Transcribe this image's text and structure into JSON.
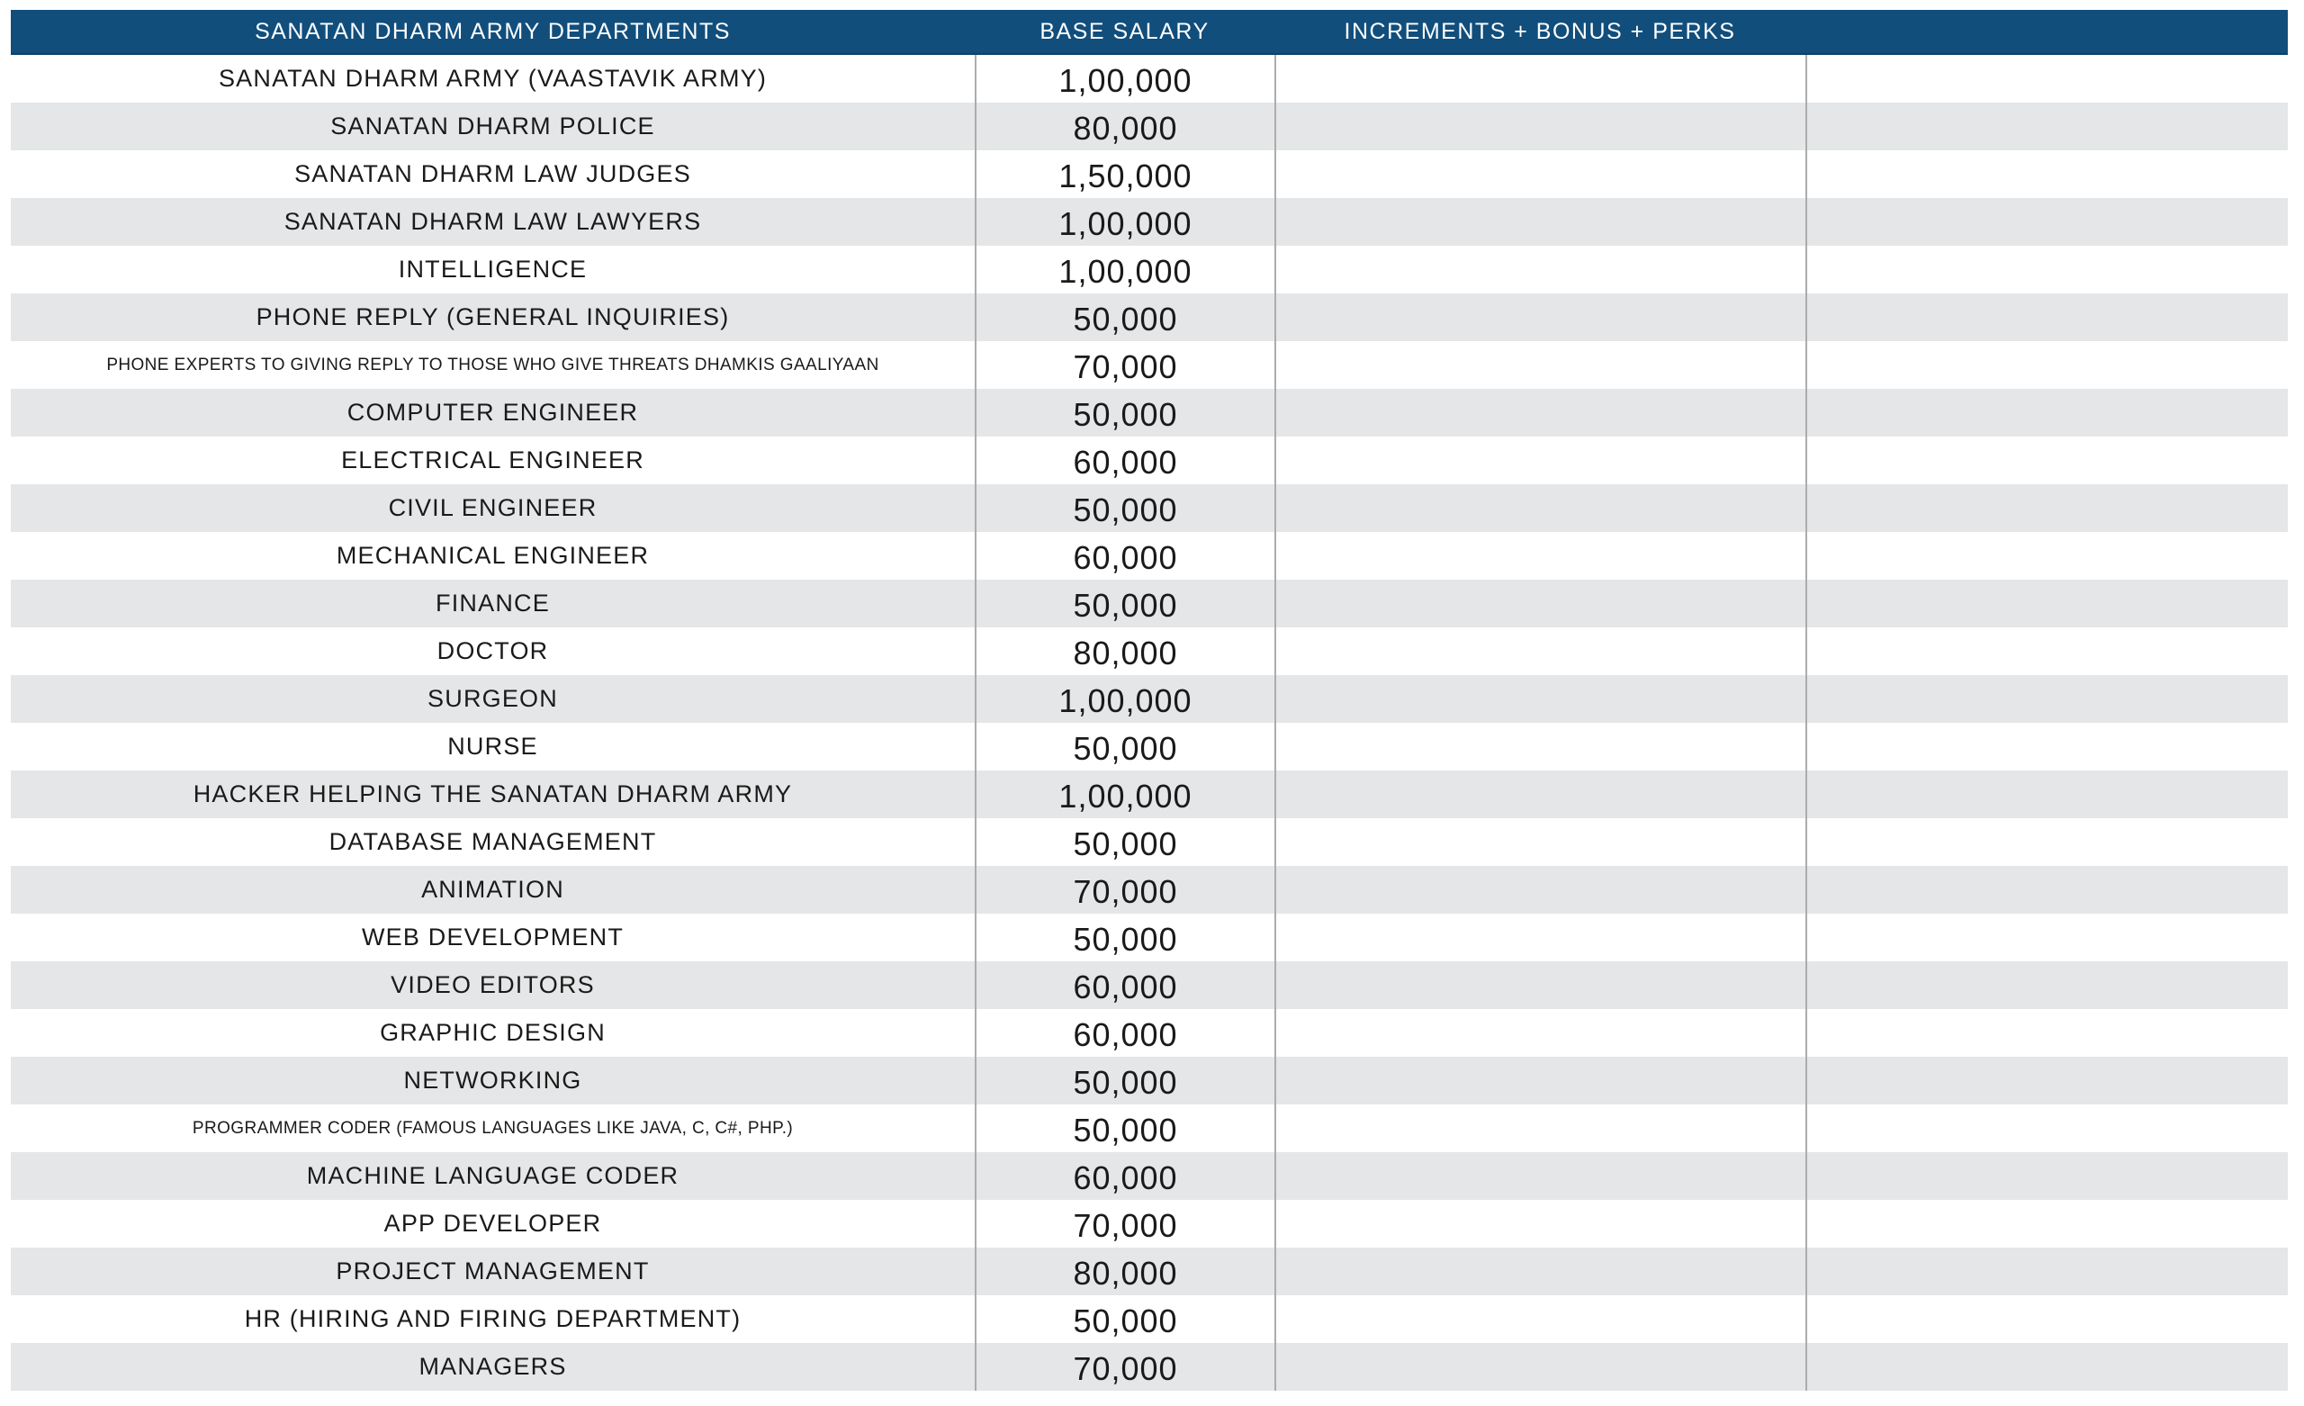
{
  "chart_data": {
    "type": "table",
    "title": "SANATAN DHARM ARMY DEPARTMENTS",
    "columns": [
      "SANATAN DHARM ARMY DEPARTMENTS",
      "BASE SALARY",
      "INCREMENTS + BONUS + PERKS",
      ""
    ],
    "layout": {
      "header_position": "top",
      "alternating_row_shading": true,
      "first_row_shade": "white",
      "grid": "vertical-lines-only"
    },
    "rows": [
      {
        "department": "SANATAN DHARM ARMY (VAASTAVIK ARMY)",
        "base_salary": "1,00,000",
        "increments_bonus_perks": "",
        "small_text": false
      },
      {
        "department": "SANATAN DHARM POLICE",
        "base_salary": "80,000",
        "increments_bonus_perks": "",
        "small_text": false
      },
      {
        "department": "SANATAN DHARM LAW JUDGES",
        "base_salary": "1,50,000",
        "increments_bonus_perks": "",
        "small_text": false
      },
      {
        "department": "SANATAN DHARM LAW LAWYERS",
        "base_salary": "1,00,000",
        "increments_bonus_perks": "",
        "small_text": false
      },
      {
        "department": "INTELLIGENCE",
        "base_salary": "1,00,000",
        "increments_bonus_perks": "",
        "small_text": false
      },
      {
        "department": "PHONE REPLY (GENERAL INQUIRIES)",
        "base_salary": "50,000",
        "increments_bonus_perks": "",
        "small_text": false
      },
      {
        "department": "PHONE EXPERTS TO GIVING REPLY TO THOSE WHO GIVE THREATS DHAMKIS GAALIYAAN",
        "base_salary": "70,000",
        "increments_bonus_perks": "",
        "small_text": true
      },
      {
        "department": "COMPUTER ENGINEER",
        "base_salary": "50,000",
        "increments_bonus_perks": "",
        "small_text": false
      },
      {
        "department": "ELECTRICAL ENGINEER",
        "base_salary": "60,000",
        "increments_bonus_perks": "",
        "small_text": false
      },
      {
        "department": "CIVIL ENGINEER",
        "base_salary": "50,000",
        "increments_bonus_perks": "",
        "small_text": false
      },
      {
        "department": "MECHANICAL ENGINEER",
        "base_salary": "60,000",
        "increments_bonus_perks": "",
        "small_text": false
      },
      {
        "department": "FINANCE",
        "base_salary": "50,000",
        "increments_bonus_perks": "",
        "small_text": false
      },
      {
        "department": "DOCTOR",
        "base_salary": "80,000",
        "increments_bonus_perks": "",
        "small_text": false
      },
      {
        "department": "SURGEON",
        "base_salary": "1,00,000",
        "increments_bonus_perks": "",
        "small_text": false
      },
      {
        "department": "NURSE",
        "base_salary": "50,000",
        "increments_bonus_perks": "",
        "small_text": false
      },
      {
        "department": "HACKER HELPING THE SANATAN DHARM ARMY",
        "base_salary": "1,00,000",
        "increments_bonus_perks": "",
        "small_text": false
      },
      {
        "department": "DATABASE MANAGEMENT",
        "base_salary": "50,000",
        "increments_bonus_perks": "",
        "small_text": false
      },
      {
        "department": "ANIMATION",
        "base_salary": "70,000",
        "increments_bonus_perks": "",
        "small_text": false
      },
      {
        "department": "WEB DEVELOPMENT",
        "base_salary": "50,000",
        "increments_bonus_perks": "",
        "small_text": false
      },
      {
        "department": "VIDEO EDITORS",
        "base_salary": "60,000",
        "increments_bonus_perks": "",
        "small_text": false
      },
      {
        "department": "GRAPHIC DESIGN",
        "base_salary": "60,000",
        "increments_bonus_perks": "",
        "small_text": false
      },
      {
        "department": "NETWORKING",
        "base_salary": "50,000",
        "increments_bonus_perks": "",
        "small_text": false
      },
      {
        "department": "PROGRAMMER CODER (FAMOUS LANGUAGES LIKE JAVA, C, C#, PHP.)",
        "base_salary": "50,000",
        "increments_bonus_perks": "",
        "small_text": true
      },
      {
        "department": "MACHINE LANGUAGE CODER",
        "base_salary": "60,000",
        "increments_bonus_perks": "",
        "small_text": false
      },
      {
        "department": "APP DEVELOPER",
        "base_salary": "70,000",
        "increments_bonus_perks": "",
        "small_text": false
      },
      {
        "department": "PROJECT MANAGEMENT",
        "base_salary": "80,000",
        "increments_bonus_perks": "",
        "small_text": false
      },
      {
        "department": "HR (HIRING AND FIRING DEPARTMENT)",
        "base_salary": "50,000",
        "increments_bonus_perks": "",
        "small_text": false
      },
      {
        "department": "MANAGERS",
        "base_salary": "70,000",
        "increments_bonus_perks": "",
        "small_text": false
      }
    ]
  },
  "colors": {
    "header_bg": "#114E7C",
    "header_edge": "#0C416B",
    "header_text": "#FFFFFF",
    "row_bg": "#FFFFFF",
    "row_alt_bg": "#E5E6E7",
    "grid_line": "#ACACAC",
    "body_text": "#1A1A1A"
  }
}
